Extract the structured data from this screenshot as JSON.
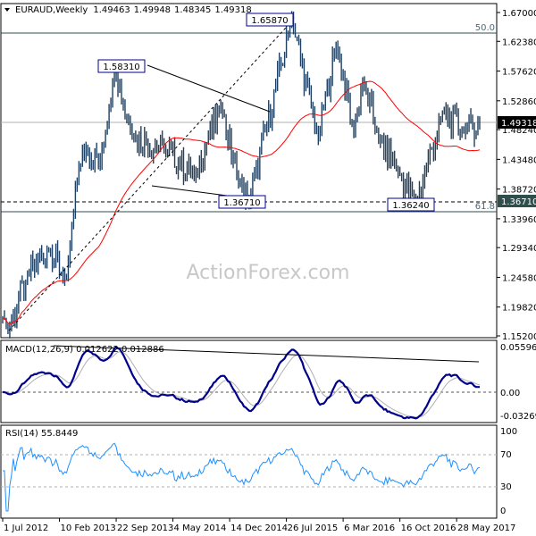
{
  "chart_data": {
    "type": "bar",
    "title": "EURAUD,Weekly",
    "ohlc_readout": [
      "1.49463",
      "1.49948",
      "1.48345",
      "1.49318"
    ],
    "price_axis": {
      "ticks": [
        "1.67000",
        "1.62380",
        "1.57620",
        "1.52860",
        "1.48240",
        "1.43480",
        "1.38720",
        "1.33960",
        "1.29340",
        "1.24580",
        "1.19820",
        "1.15200"
      ],
      "range": [
        1.152,
        1.67
      ]
    },
    "current_price": "1.49318",
    "support_level": "1.36710",
    "x_axis": {
      "ticks": [
        "1 Jul 2012",
        "10 Feb 2013",
        "22 Sep 2013",
        "4 May 2014",
        "14 Dec 2014",
        "26 Jul 2015",
        "6 Mar 2016",
        "16 Oct 2016",
        "28 May 2017"
      ],
      "range": [
        "2012-07-01",
        "2017-08-27"
      ]
    },
    "swing_anchors": [
      [
        "2012-07-08",
        1.18
      ],
      [
        "2012-07-22",
        1.16
      ],
      [
        "2012-10-07",
        1.25
      ],
      [
        "2012-12-30",
        1.29
      ],
      [
        "2013-03-10",
        1.245
      ],
      [
        "2013-04-28",
        1.42
      ],
      [
        "2013-05-26",
        1.45
      ],
      [
        "2013-07-21",
        1.43
      ],
      [
        "2013-09-15",
        1.5831
      ],
      [
        "2013-11-24",
        1.47
      ],
      [
        "2014-04-06",
        1.45
      ],
      [
        "2014-07-27",
        1.41
      ],
      [
        "2014-11-09",
        1.52
      ],
      [
        "2015-01-18",
        1.4
      ],
      [
        "2015-03-01",
        1.3671
      ],
      [
        "2015-08-16",
        1.6587
      ],
      [
        "2015-11-29",
        1.47
      ],
      [
        "2016-02-07",
        1.62
      ],
      [
        "2016-04-17",
        1.48
      ],
      [
        "2016-05-22",
        1.56
      ],
      [
        "2016-07-24",
        1.47
      ],
      [
        "2016-10-02",
        1.42
      ],
      [
        "2016-12-18",
        1.3624
      ],
      [
        "2017-04-02",
        1.51
      ],
      [
        "2017-06-25",
        1.48
      ],
      [
        "2017-08-27",
        1.49318
      ]
    ],
    "annotations": {
      "high_1": "1.65870",
      "high_2": "1.58310",
      "low_1": "1.36710",
      "low_2": "1.36240",
      "fib_50": "50.0",
      "fib_618": "61.8"
    },
    "moving_average_color": "#ff0000",
    "bar_color": "#1f4060",
    "macd": {
      "label": "MACD(12,26,9) 0.012622 0.012886",
      "ticks": [
        "0.055965",
        "0.00",
        "-0.03269"
      ],
      "range": [
        -0.03269,
        0.055965
      ],
      "line_color": "#00008b",
      "signal_color": "#b0b0b0"
    },
    "rsi": {
      "label": "RSI(14) 55.8449",
      "ticks": [
        "100",
        "70",
        "30",
        "0"
      ],
      "range": [
        0,
        100
      ],
      "color": "#1e90ff"
    },
    "watermark": "ActionForex.com"
  }
}
